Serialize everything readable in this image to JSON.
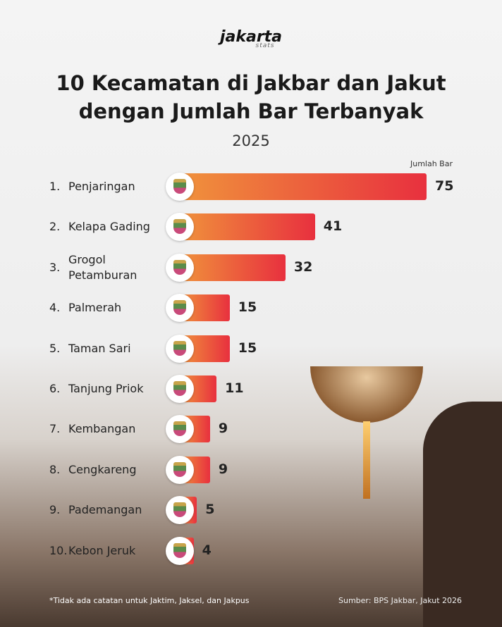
{
  "brand": "jakarta",
  "brand_sub": "stats",
  "chart_data": {
    "type": "bar",
    "orientation": "horizontal",
    "title": "10 Kecamatan di Jakbar dan Jakut dengan Jumlah Bar Terbanyak",
    "subtitle": "2025",
    "value_axis_label": "Jumlah Bar",
    "ranks": [
      "1.",
      "2.",
      "3.",
      "4.",
      "5.",
      "6.",
      "7.",
      "8.",
      "9.",
      "10."
    ],
    "categories": [
      "Penjaringan",
      "Kelapa Gading",
      "Grogol Petamburan",
      "Palmerah",
      "Taman Sari",
      "Tanjung Priok",
      "Kembangan",
      "Cengkareng",
      "Pademangan",
      "Kebon Jeruk"
    ],
    "values": [
      75,
      41,
      32,
      15,
      15,
      11,
      9,
      9,
      5,
      4
    ],
    "color_start": "#f0923c",
    "color_end": "#e8303e"
  },
  "footnote": "*Tidak ada catatan untuk Jaktim, Jaksel, dan Jakpus",
  "source": "Sumber: BPS Jakbar, Jakut 2026"
}
